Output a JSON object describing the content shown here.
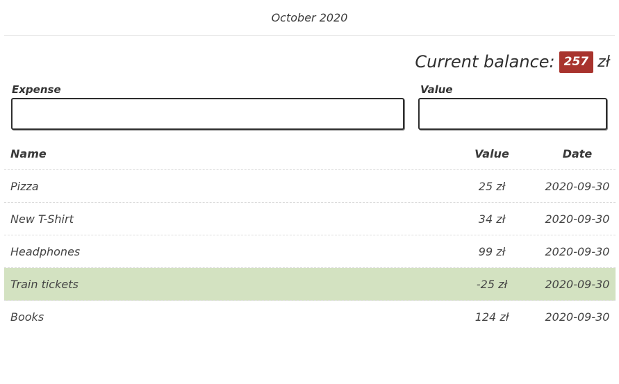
{
  "header": {
    "title": "October 2020"
  },
  "balance": {
    "label": "Current balance:",
    "amount": "257",
    "currency": "zł"
  },
  "form": {
    "expense_label": "Expense",
    "expense_value": "",
    "value_label": "Value",
    "value_value": ""
  },
  "table": {
    "columns": {
      "name": "Name",
      "value": "Value",
      "date": "Date"
    },
    "rows": [
      {
        "name": "Pizza",
        "value": "25 zł",
        "date": "2020-09-30",
        "highlight": false
      },
      {
        "name": "New T-Shirt",
        "value": "34 zł",
        "date": "2020-09-30",
        "highlight": false
      },
      {
        "name": "Headphones",
        "value": "99 zł",
        "date": "2020-09-30",
        "highlight": false
      },
      {
        "name": "Train tickets",
        "value": "-25 zł",
        "date": "2020-09-30",
        "highlight": true
      },
      {
        "name": "Books",
        "value": "124 zł",
        "date": "2020-09-30",
        "highlight": false
      }
    ]
  },
  "colors": {
    "badge": "#a8332d",
    "highlight_row": "#d3e2c1"
  }
}
